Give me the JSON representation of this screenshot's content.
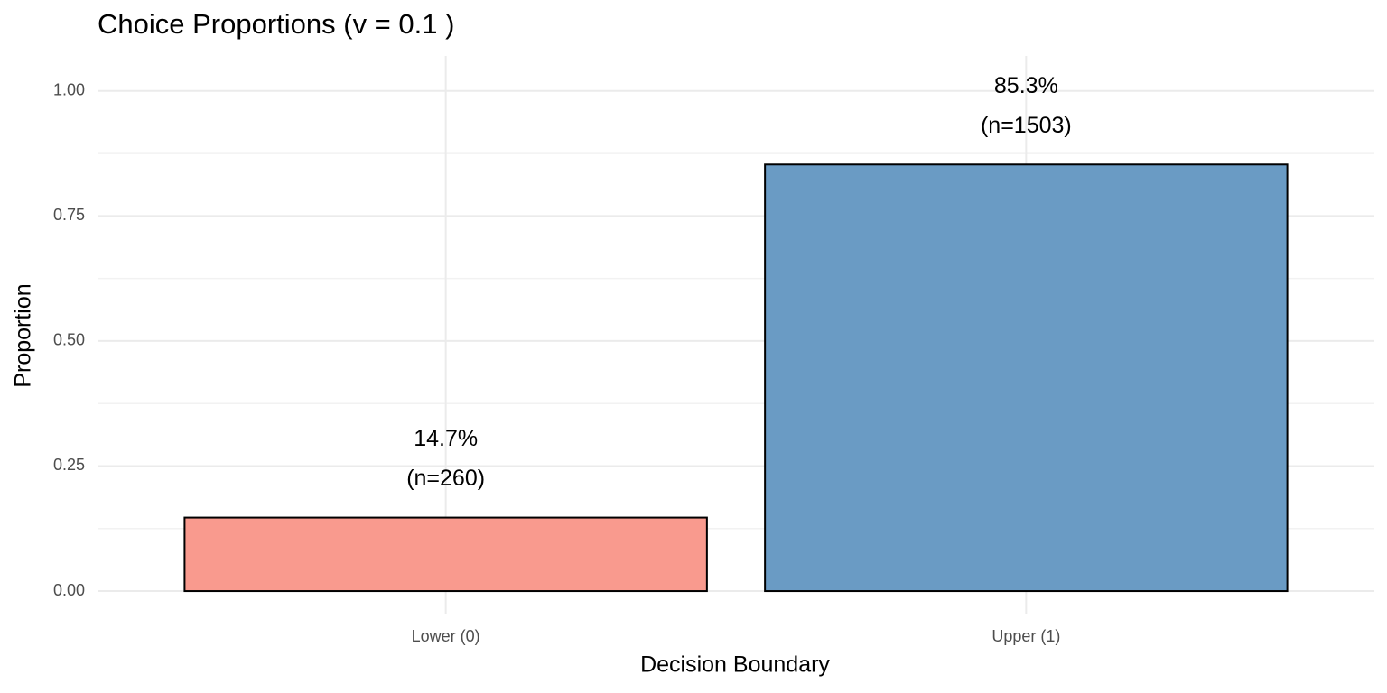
{
  "chart_data": {
    "type": "bar",
    "title": "Choice Proportions (v = 0.1 )",
    "x_label": "Decision Boundary",
    "y_label": "Proportion",
    "categories": [
      "Lower (0)",
      "Upper (1)"
    ],
    "values": [
      0.147,
      0.853
    ],
    "value_labels": [
      "14.7%",
      "85.3%"
    ],
    "count_labels": [
      "(n=260)",
      "(n=1503)"
    ],
    "colors": [
      "#f99a8e",
      "#6a9bc4"
    ],
    "ylim": [
      -0.045,
      1.07
    ],
    "yticks": [
      {
        "value": 0,
        "label": "0.00"
      },
      {
        "value": 0.25,
        "label": "0.25"
      },
      {
        "value": 0.5,
        "label": "0.50"
      },
      {
        "value": 0.75,
        "label": "0.75"
      },
      {
        "value": 1,
        "label": "1.00"
      }
    ],
    "grid": true
  }
}
